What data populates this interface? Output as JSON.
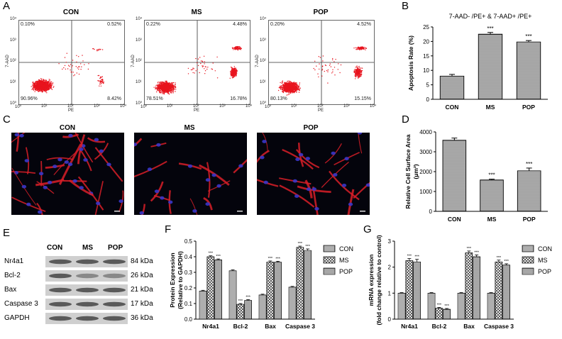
{
  "panels": {
    "A": "A",
    "B": "B",
    "C": "C",
    "D": "D",
    "E": "E",
    "F": "F",
    "G": "G"
  },
  "flow": {
    "axis": {
      "ticks_x": [
        "10⁰",
        "10¹",
        "10²",
        "10³",
        "10⁴"
      ],
      "ticks_y": [
        "10⁰",
        "10¹",
        "10²",
        "10³",
        "10⁴"
      ],
      "xlabel": "PE",
      "ylabel": "7-AAD"
    },
    "plots": [
      {
        "title": "CON",
        "ul": "0.10%",
        "ur": "0.52%",
        "ll": "90.96%",
        "lr": "8.42%"
      },
      {
        "title": "MS",
        "ul": "0.22%",
        "ur": "4.48%",
        "ll": "78.51%",
        "lr": "16.78%"
      },
      {
        "title": "POP",
        "ul": "0.20%",
        "ur": "4.52%",
        "ll": "80.13%",
        "lr": "15.15%"
      }
    ]
  },
  "micro": {
    "titles": [
      "CON",
      "MS",
      "POP"
    ]
  },
  "western": {
    "columns": [
      "CON",
      "MS",
      "POP"
    ],
    "rows": [
      {
        "protein": "Nr4a1",
        "size": "84 kDa"
      },
      {
        "protein": "Bcl-2",
        "size": "26 kDa"
      },
      {
        "protein": "Bax",
        "size": "21 kDa"
      },
      {
        "protein": "Caspase 3",
        "size": "17 kDa"
      },
      {
        "protein": "GAPDH",
        "size": "36 kDa"
      }
    ]
  },
  "colors": {
    "dot_red": "#e8141e",
    "cell_red": "#d81e28",
    "nucleus_blue": "#3a36c8",
    "bar_fill": "#ffffff"
  },
  "chart_data": [
    {
      "id": "B",
      "type": "bar",
      "title": "7-AAD- /PE+ & 7-AAD+ /PE+",
      "ylabel": "Apoptosis Rate (%)",
      "categories": [
        "CON",
        "MS",
        "POP"
      ],
      "values": [
        8,
        22.5,
        19.8
      ],
      "errors": [
        0.6,
        0.6,
        0.5
      ],
      "significance": [
        "",
        "***",
        "***"
      ],
      "ylim": [
        0,
        25
      ],
      "yticks": [
        "0",
        "5",
        "10",
        "15",
        "20",
        "25"
      ]
    },
    {
      "id": "D",
      "type": "bar",
      "title": "",
      "ylabel": "Relative Cell Surface Area",
      "ylabel2": "(μm²)",
      "categories": [
        "CON",
        "MS",
        "POP"
      ],
      "values": [
        3580,
        1580,
        2040
      ],
      "errors": [
        110,
        40,
        140
      ],
      "significance": [
        "",
        "***",
        "***"
      ],
      "ylim": [
        0,
        4000
      ],
      "yticks": [
        "0",
        "1000",
        "2000",
        "3000",
        "4000"
      ]
    },
    {
      "id": "F",
      "type": "bar",
      "ylabel": "Protein Expression",
      "ylabel2": "(Relative to GAPDH)",
      "categories": [
        "Nr4a1",
        "Bcl-2",
        "Bax",
        "Caspase 3"
      ],
      "series": [
        {
          "name": "CON",
          "values": [
            0.18,
            0.31,
            0.155,
            0.205
          ],
          "errors": [
            0.005,
            0.006,
            0.005,
            0.005
          ]
        },
        {
          "name": "MS",
          "values": [
            0.4,
            0.095,
            0.365,
            0.46
          ],
          "errors": [
            0.006,
            0.005,
            0.008,
            0.008
          ]
        },
        {
          "name": "POP",
          "values": [
            0.38,
            0.12,
            0.365,
            0.44
          ],
          "errors": [
            0.006,
            0.005,
            0.006,
            0.01
          ]
        }
      ],
      "significance_label": "***",
      "ylim": [
        0,
        0.5
      ],
      "yticks": [
        "0.0",
        "0.1",
        "0.2",
        "0.3",
        "0.4",
        "0.5"
      ]
    },
    {
      "id": "G",
      "type": "bar",
      "ylabel": "mRNA expression",
      "ylabel2": "(fold change relative to control)",
      "categories": [
        "Nr4a1",
        "Bcl-2",
        "Bax",
        "Caspase 3"
      ],
      "series": [
        {
          "name": "CON",
          "values": [
            1,
            1,
            1,
            1
          ],
          "errors": [
            0.02,
            0.02,
            0.02,
            0.02
          ]
        },
        {
          "name": "MS",
          "values": [
            2.25,
            0.42,
            2.55,
            2.2
          ],
          "errors": [
            0.08,
            0.03,
            0.07,
            0.07
          ]
        },
        {
          "name": "POP",
          "values": [
            2.2,
            0.38,
            2.4,
            2.08
          ],
          "errors": [
            0.1,
            0.03,
            0.07,
            0.05
          ]
        }
      ],
      "significance_label": "***",
      "ylim": [
        0,
        3
      ],
      "yticks": [
        "0",
        "1",
        "2",
        "3"
      ]
    }
  ]
}
